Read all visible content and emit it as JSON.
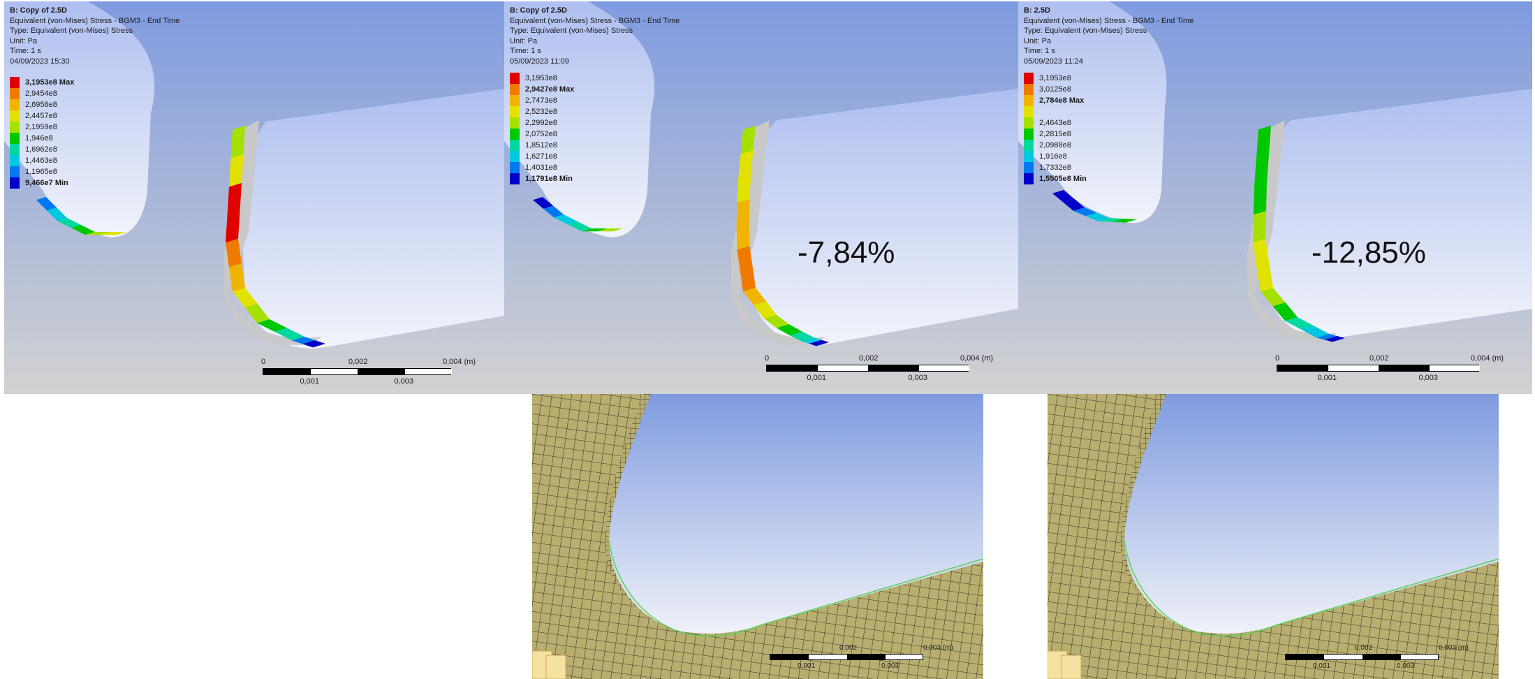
{
  "panels": [
    {
      "header": "B: Copy of 2.5D",
      "result": "Equivalent (von-Mises) Stress - BGM3 - End Time",
      "type": "Type: Equivalent (von-Mises) Stress",
      "unit": "Unit: Pa",
      "time": "Time: 1 s",
      "date": "04/09/2023 15:30",
      "legend": [
        {
          "label": "3,1953e8 Max",
          "bold": true
        },
        {
          "label": "2,9454e8",
          "bold": false
        },
        {
          "label": "2,6956e8",
          "bold": false
        },
        {
          "label": "2,4457e8",
          "bold": false
        },
        {
          "label": "2,1959e8",
          "bold": false
        },
        {
          "label": "1,946e8",
          "bold": false
        },
        {
          "label": "1,6962e8",
          "bold": false
        },
        {
          "label": "1,4463e8",
          "bold": false
        },
        {
          "label": "1,1965e8",
          "bold": false
        },
        {
          "label": "9,466e7 Min",
          "bold": true
        }
      ],
      "scale": {
        "top": [
          "0",
          "0,002",
          "0,004 (m)"
        ],
        "bottom": [
          "0,001",
          "0,003"
        ]
      },
      "percent": ""
    },
    {
      "header": "B: Copy of 2.5D",
      "result": "Equivalent (von-Mises) Stress - BGM3 - End Time",
      "type": "Type: Equivalent (von-Mises) Stress",
      "unit": "Unit: Pa",
      "time": "Time: 1 s",
      "date": "05/09/2023 11:09",
      "legend": [
        {
          "label": "3,1953e8",
          "bold": false
        },
        {
          "label": "2,9427e8 Max",
          "bold": true
        },
        {
          "label": "2,7473e8",
          "bold": false
        },
        {
          "label": "2,5232e8",
          "bold": false
        },
        {
          "label": "2,2992e8",
          "bold": false
        },
        {
          "label": "2,0752e8",
          "bold": false
        },
        {
          "label": "1,8512e8",
          "bold": false
        },
        {
          "label": "1,6271e8",
          "bold": false
        },
        {
          "label": "1,4031e8",
          "bold": false
        },
        {
          "label": "1,1791e8 Min",
          "bold": true
        }
      ],
      "scale": {
        "top": [
          "0",
          "0,002",
          "0,004 (m)"
        ],
        "bottom": [
          "0,001",
          "0,003"
        ]
      },
      "percent": "-7,84%"
    },
    {
      "header": "B: 2.5D",
      "result": "Equivalent (von-Mises) Stress - BGM3 - End Time",
      "type": "Type: Equivalent (von-Mises) Stress",
      "unit": "Unit: Pa",
      "time": "Time: 1 s",
      "date": "05/09/2023 11:24",
      "legend": [
        {
          "label": "3,1953e8",
          "bold": false
        },
        {
          "label": "3,0125e8",
          "bold": false
        },
        {
          "label": "2,784e8 Max",
          "bold": true
        },
        {
          "label": "",
          "bold": false
        },
        {
          "label": "2,4643e8",
          "bold": false
        },
        {
          "label": "2,2815e8",
          "bold": false
        },
        {
          "label": "2,0988e8",
          "bold": false
        },
        {
          "label": "1,916e8",
          "bold": false
        },
        {
          "label": "1,7332e8",
          "bold": false
        },
        {
          "label": "1,5505e8 Min",
          "bold": true
        }
      ],
      "scale": {
        "top": [
          "0",
          "0,002",
          "0,004 (m)"
        ],
        "bottom": [
          "0,001",
          "0,003"
        ]
      },
      "percent": "-12,85%"
    }
  ],
  "mesh_panels": [
    {
      "scale_top": [
        "0,002",
        "0,003 (m)"
      ],
      "scale_bottom": [
        "0,001",
        "0,003"
      ]
    },
    {
      "scale_top": [
        "0,002",
        "0,003 (m)"
      ],
      "scale_bottom": [
        "0,001",
        "0,003"
      ]
    }
  ],
  "colors": {
    "legend": [
      "#e00000",
      "#f07a00",
      "#f0b400",
      "#e2e200",
      "#a6e000",
      "#00c800",
      "#00d8a0",
      "#00c8e0",
      "#0078f0",
      "#0000c8"
    ],
    "mesh_fill": "#b8ae70",
    "mesh_line": "#3a3220",
    "bg_top": "#7f9be0",
    "bg_bottom": "#d2d2d2"
  }
}
